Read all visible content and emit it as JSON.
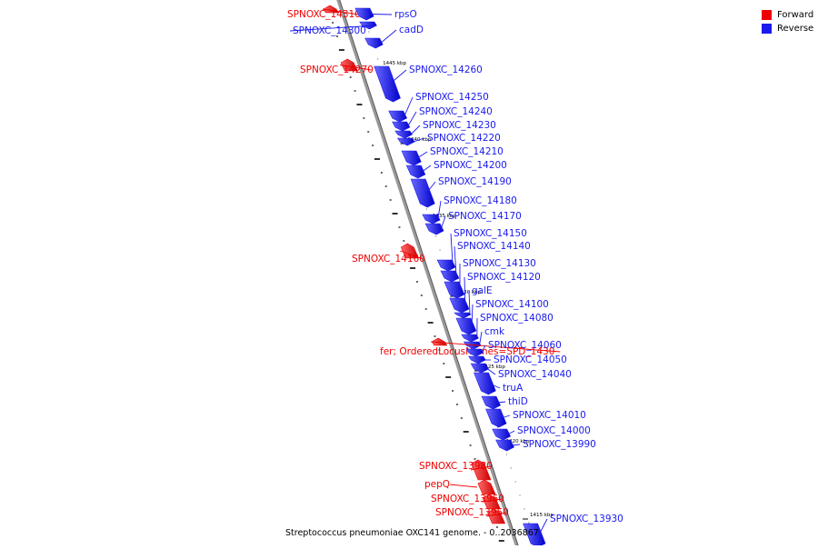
{
  "colors": {
    "forward": "#ee0000",
    "reverse": "#1a1aee",
    "axis": "#888888",
    "tick": "#000000"
  },
  "legend": {
    "forward_label": "Forward",
    "reverse_label": "Reverse"
  },
  "caption": "Streptococcus pneumoniae OXC141 genome. - 0..2036867",
  "kbp_ticks": [
    {
      "label": "1445 kbp",
      "at": 1445
    },
    {
      "label": "1440 kbp",
      "at": 1440
    },
    {
      "label": "1435 kbp",
      "at": 1435
    },
    {
      "label": "1430 kbp",
      "at": 1430
    },
    {
      "label": "1425 kbp",
      "at": 1425
    },
    {
      "label": "1420 kbp",
      "at": 1420
    },
    {
      "label": "1415 kbp",
      "at": 1415
    }
  ],
  "genes": [
    {
      "label": "SPNOXC_14310",
      "strand": "forward"
    },
    {
      "label": "rpsO",
      "strand": "reverse"
    },
    {
      "label": "SPNOXC_14300",
      "strand": "reverse"
    },
    {
      "label": "cadD",
      "strand": "reverse"
    },
    {
      "label": "SPNOXC_14270",
      "strand": "forward"
    },
    {
      "label": "SPNOXC_14260",
      "strand": "reverse"
    },
    {
      "label": "SPNOXC_14250",
      "strand": "reverse"
    },
    {
      "label": "SPNOXC_14240",
      "strand": "reverse"
    },
    {
      "label": "SPNOXC_14230",
      "strand": "reverse"
    },
    {
      "label": "SPNOXC_14220",
      "strand": "reverse"
    },
    {
      "label": "SPNOXC_14210",
      "strand": "reverse"
    },
    {
      "label": "SPNOXC_14200",
      "strand": "reverse"
    },
    {
      "label": "SPNOXC_14190",
      "strand": "reverse"
    },
    {
      "label": "SPNOXC_14180",
      "strand": "reverse"
    },
    {
      "label": "SPNOXC_14170",
      "strand": "reverse"
    },
    {
      "label": "SPNOXC_14160",
      "strand": "forward"
    },
    {
      "label": "SPNOXC_14150",
      "strand": "reverse"
    },
    {
      "label": "SPNOXC_14140",
      "strand": "reverse"
    },
    {
      "label": "SPNOXC_14130",
      "strand": "reverse"
    },
    {
      "label": "SPNOXC_14120",
      "strand": "reverse"
    },
    {
      "label": "galE",
      "strand": "reverse"
    },
    {
      "label": "SPNOXC_14100",
      "strand": "reverse"
    },
    {
      "label": "SPNOXC_14080",
      "strand": "reverse"
    },
    {
      "label": "cmk",
      "strand": "reverse"
    },
    {
      "label": "fer; OrderedLocusNames=SPD_1430",
      "strand": "forward"
    },
    {
      "label": "SPNOXC_14060",
      "strand": "reverse"
    },
    {
      "label": "SPNOXC_14050",
      "strand": "reverse"
    },
    {
      "label": "SPNOXC_14040",
      "strand": "reverse"
    },
    {
      "label": "truA",
      "strand": "reverse"
    },
    {
      "label": "thiD",
      "strand": "reverse"
    },
    {
      "label": "SPNOXC_14010",
      "strand": "reverse"
    },
    {
      "label": "SPNOXC_14000",
      "strand": "reverse"
    },
    {
      "label": "SPNOXC_13990",
      "strand": "reverse"
    },
    {
      "label": "SPNOXC_13980",
      "strand": "forward"
    },
    {
      "label": "pepQ",
      "strand": "forward"
    },
    {
      "label": "SPNOXC_13960",
      "strand": "forward"
    },
    {
      "label": "SPNOXC_13950",
      "strand": "forward"
    },
    {
      "label": "SPNOXC_13930",
      "strand": "reverse"
    }
  ]
}
